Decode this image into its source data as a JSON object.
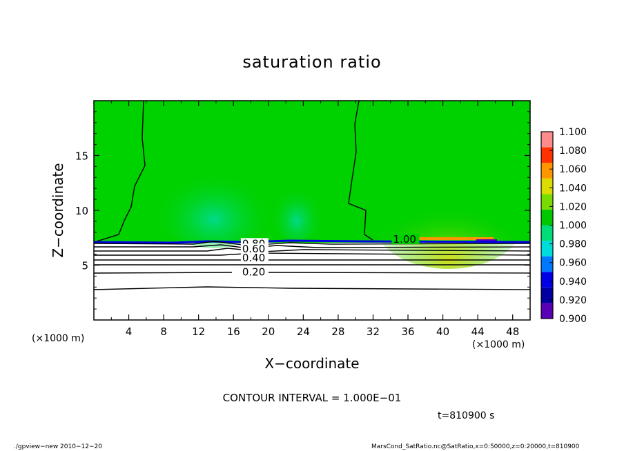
{
  "chart_data": {
    "type": "heatmap",
    "title": "saturation ratio",
    "xlabel": "X−coordinate",
    "ylabel": "Z−coordinate",
    "x_unit": "(×1000 m)",
    "xlim": [
      0,
      50
    ],
    "ylim": [
      0,
      20
    ],
    "x_ticks": [
      4,
      8,
      12,
      16,
      20,
      24,
      28,
      32,
      36,
      40,
      44,
      48
    ],
    "y_ticks": [
      5,
      10,
      15
    ],
    "colorbar": {
      "levels": [
        0.9,
        0.92,
        0.94,
        0.96,
        0.98,
        1.0,
        1.02,
        1.04,
        1.06,
        1.08,
        1.1
      ],
      "tick_labels": [
        "0.900",
        "0.920",
        "0.940",
        "0.960",
        "0.980",
        "1.000",
        "1.020",
        "1.040",
        "1.060",
        "1.080",
        "1.100"
      ],
      "colors": [
        "#5a00b4",
        "#0000a0",
        "#0000e6",
        "#0078ff",
        "#00dcdc",
        "#00dc78",
        "#00c800",
        "#78dc00",
        "#dcdc00",
        "#ff9600",
        "#ff3200",
        "#ff8c8c"
      ]
    },
    "background_value_color": "#00d200",
    "contour_labels": [
      {
        "text": "1.00",
        "x": 34.3,
        "z": 7.3
      },
      {
        "text": "0.80",
        "x": 17.0,
        "z": 6.9
      },
      {
        "text": "0.60",
        "x": 17.0,
        "z": 6.4
      },
      {
        "text": "0.40",
        "x": 17.0,
        "z": 5.6
      },
      {
        "text": "0.20",
        "x": 17.0,
        "z": 4.3
      }
    ],
    "contour_interval_text": "CONTOUR INTERVAL = 1.000E−01"
  },
  "annotations": {
    "time": "t=810900 s",
    "footer_left": "./gpview−new  2010−12−20",
    "footer_right": "MarsCond_SatRatio.nc@SatRatio,x=0:50000,z=0:20000,t=810900"
  }
}
